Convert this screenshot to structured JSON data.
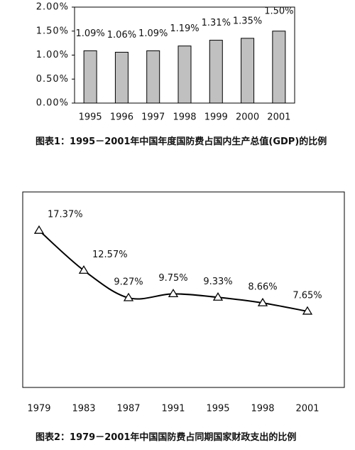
{
  "chart_data": [
    {
      "type": "bar",
      "title": "图表1：1995－2001年中国年度国防费占国内生产总值(GDP)的比例",
      "categories": [
        "1995",
        "1996",
        "1997",
        "1998",
        "1999",
        "2000",
        "2001"
      ],
      "values": [
        1.09,
        1.06,
        1.09,
        1.19,
        1.31,
        1.35,
        1.5
      ],
      "value_labels": [
        "1.09%",
        "1.06%",
        "1.09%",
        "1.19%",
        "1.31%",
        "1.35%",
        "1.50%"
      ],
      "color": "#c0c0c0",
      "ylim": [
        0,
        2
      ],
      "yticks": [
        {
          "value": 0,
          "label": "0.00%"
        },
        {
          "value": 0.5,
          "label": "0.50%"
        },
        {
          "value": 1,
          "label": "1.00%"
        },
        {
          "value": 1.5,
          "label": "1.50%"
        },
        {
          "value": 2,
          "label": "2.00%"
        }
      ]
    },
    {
      "type": "line",
      "title": "图表2：1979－2001年中国国防费占同期国家财政支出的比例",
      "categories": [
        "1979",
        "1983",
        "1987",
        "1991",
        "1995",
        "1998",
        "2001"
      ],
      "values": [
        17.37,
        12.57,
        9.27,
        9.75,
        9.33,
        8.66,
        7.65
      ],
      "value_labels": [
        "17.37%",
        "12.57%",
        "9.27%",
        "9.75%",
        "9.33%",
        "8.66%",
        "7.65%"
      ],
      "color": "#000000",
      "ylim": [
        -1.5,
        22
      ]
    }
  ]
}
